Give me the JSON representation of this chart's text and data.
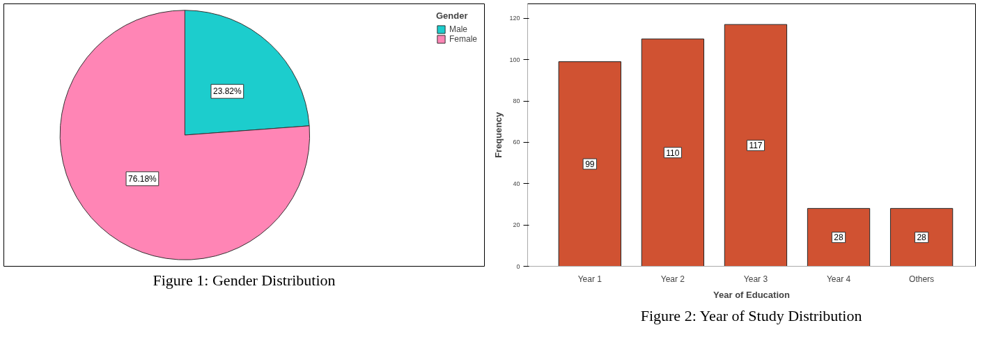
{
  "chart_data": [
    {
      "type": "pie",
      "categories": [
        "Male",
        "Female"
      ],
      "values": [
        23.82,
        76.18
      ],
      "colors": [
        "#1ccdcd",
        "#ff85b5"
      ],
      "value_labels": [
        "23.82%",
        "76.18%"
      ],
      "legend": "top right",
      "legend_title": "Gender",
      "annotations": [
        "Figure 1: Gender Distribution"
      ]
    },
    {
      "type": "bar",
      "categories": [
        "Year 1",
        "Year 2",
        "Year 3",
        "Year 4",
        "Others"
      ],
      "values": [
        99,
        110,
        117,
        28,
        28
      ],
      "color": "#d05232",
      "xlabel": "Year of Education",
      "ylabel": "Frequency",
      "ylim": [
        0,
        127
      ],
      "yticks": [
        0,
        20,
        40,
        60,
        80,
        100,
        120
      ],
      "data_labels": true,
      "grid": false,
      "annotations": [
        "Figure 2: Year of Study Distribution"
      ]
    }
  ]
}
